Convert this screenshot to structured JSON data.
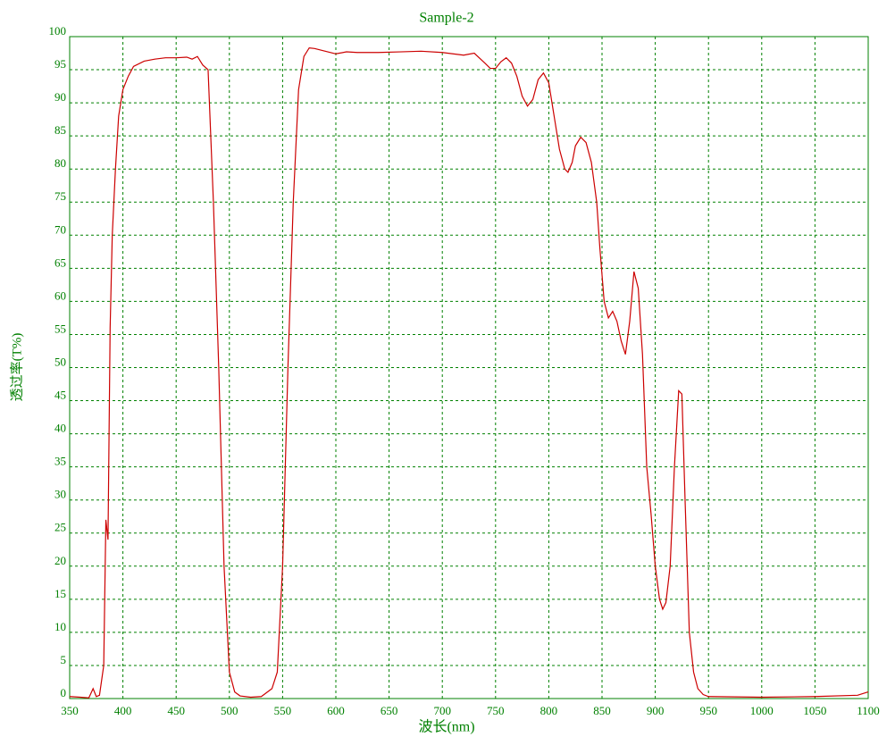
{
  "chart_data": {
    "type": "line",
    "title": "Sample-2",
    "x_label": "波长(nm)",
    "y_label": "透过率(T%)",
    "xlim": [
      350,
      1100
    ],
    "ylim": [
      0,
      100
    ],
    "xticks": [
      350,
      400,
      450,
      500,
      550,
      600,
      650,
      700,
      750,
      800,
      850,
      900,
      950,
      1000,
      1050,
      1100
    ],
    "yticks": [
      0,
      5,
      10,
      15,
      20,
      25,
      30,
      35,
      40,
      45,
      50,
      55,
      60,
      65,
      70,
      75,
      80,
      85,
      90,
      95,
      100
    ],
    "grid": true,
    "series": [
      {
        "name": "Sample-2",
        "color": "#cc0000",
        "x": [
          350,
          360,
          368,
          372,
          375,
          378,
          382,
          384,
          386,
          388,
          390,
          393,
          396,
          400,
          405,
          410,
          420,
          430,
          440,
          450,
          460,
          465,
          470,
          475,
          480,
          485,
          490,
          495,
          500,
          505,
          510,
          520,
          530,
          540,
          545,
          550,
          555,
          560,
          565,
          570,
          575,
          580,
          590,
          600,
          610,
          620,
          640,
          660,
          680,
          700,
          720,
          730,
          740,
          745,
          750,
          755,
          760,
          765,
          770,
          775,
          780,
          785,
          790,
          795,
          800,
          805,
          810,
          815,
          818,
          822,
          825,
          830,
          835,
          840,
          845,
          848,
          852,
          856,
          860,
          864,
          868,
          872,
          876,
          880,
          884,
          888,
          892,
          896,
          900,
          904,
          907,
          910,
          914,
          918,
          922,
          925,
          928,
          932,
          936,
          940,
          945,
          950,
          1000,
          1050,
          1090,
          1100
        ],
        "values": [
          0.3,
          0.2,
          0.1,
          1.5,
          0.3,
          0.5,
          5,
          27,
          24,
          56,
          70,
          80,
          88,
          92,
          94,
          95.5,
          96.3,
          96.6,
          96.8,
          96.8,
          96.9,
          96.6,
          97,
          95.7,
          95,
          75,
          50,
          20,
          4,
          1,
          0.4,
          0.2,
          0.3,
          1.5,
          4,
          20,
          50,
          75,
          92,
          97,
          98.3,
          98.2,
          97.8,
          97.4,
          97.7,
          97.6,
          97.6,
          97.7,
          97.8,
          97.6,
          97.2,
          97.5,
          96,
          95.2,
          95.2,
          96.2,
          96.8,
          96,
          94,
          91,
          89.5,
          90.5,
          93.5,
          94.5,
          93,
          88,
          83,
          80,
          79.5,
          81,
          83.5,
          84.8,
          84,
          81,
          75,
          68,
          60,
          57.5,
          58.5,
          57,
          54,
          52,
          57,
          64.5,
          62,
          52,
          35,
          28,
          20,
          15,
          13.5,
          14.5,
          20,
          35,
          46.5,
          46,
          30,
          10,
          4,
          1.5,
          0.6,
          0.3,
          0.2,
          0.3,
          0.5,
          1
        ]
      }
    ]
  }
}
